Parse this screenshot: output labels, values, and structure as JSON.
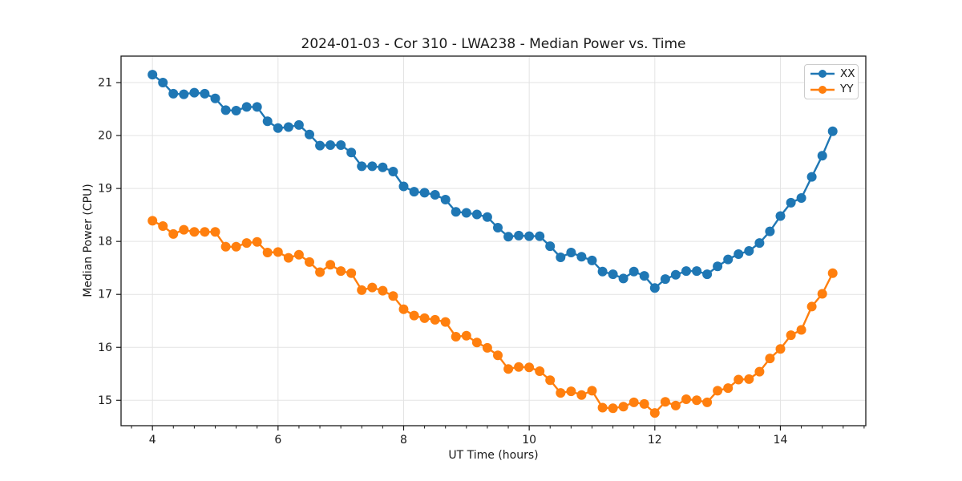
{
  "figure_title": "2024-01-03 - Cor 310 - LWA238 - Median Power vs. Time",
  "chart_data": {
    "type": "line",
    "title": "2024-01-03 - Cor 310 - LWA238 - Median Power vs. Time",
    "xlabel": "UT Time (hours)",
    "ylabel": "Median Power (CPU)",
    "xlim": [
      3.5,
      15.36
    ],
    "ylim": [
      14.52,
      21.5
    ],
    "xticks": [
      4,
      6,
      8,
      10,
      12,
      14
    ],
    "yticks": [
      15,
      16,
      17,
      18,
      19,
      20,
      21
    ],
    "xtick_minor_step": 0.33333,
    "grid": true,
    "legend_position": "upper right",
    "marker": "circle",
    "x": [
      4.0,
      4.167,
      4.333,
      4.5,
      4.667,
      4.833,
      5.0,
      5.167,
      5.333,
      5.5,
      5.667,
      5.833,
      6.0,
      6.167,
      6.333,
      6.5,
      6.667,
      6.833,
      7.0,
      7.167,
      7.333,
      7.5,
      7.667,
      7.833,
      8.0,
      8.167,
      8.333,
      8.5,
      8.667,
      8.833,
      9.0,
      9.167,
      9.333,
      9.5,
      9.667,
      9.833,
      10.0,
      10.167,
      10.333,
      10.5,
      10.667,
      10.833,
      11.0,
      11.167,
      11.333,
      11.5,
      11.667,
      11.833,
      12.0,
      12.167,
      12.333,
      12.5,
      12.667,
      12.833,
      13.0,
      13.167,
      13.333,
      13.5,
      13.667,
      13.833,
      14.0,
      14.167,
      14.333,
      14.5,
      14.667,
      14.833
    ],
    "series": [
      {
        "name": "XX",
        "color": "#1f77b4",
        "values": [
          21.15,
          21.0,
          20.79,
          20.78,
          20.81,
          20.79,
          20.7,
          20.48,
          20.47,
          20.54,
          20.54,
          20.27,
          20.14,
          20.16,
          20.2,
          20.02,
          19.81,
          19.82,
          19.82,
          19.68,
          19.42,
          19.42,
          19.4,
          19.32,
          19.04,
          18.94,
          18.92,
          18.88,
          18.79,
          18.56,
          18.54,
          18.51,
          18.46,
          18.26,
          18.09,
          18.11,
          18.1,
          18.1,
          17.91,
          17.7,
          17.79,
          17.71,
          17.64,
          17.43,
          17.38,
          17.3,
          17.43,
          17.35,
          17.12,
          17.29,
          17.37,
          17.44,
          17.44,
          17.38,
          17.53,
          17.66,
          17.76,
          17.82,
          17.97,
          18.19,
          18.48,
          18.73,
          18.82,
          19.22,
          19.62,
          20.08
        ]
      },
      {
        "name": "YY",
        "color": "#ff7f0e",
        "values": [
          18.39,
          18.29,
          18.14,
          18.22,
          18.18,
          18.18,
          18.18,
          17.9,
          17.9,
          17.97,
          17.99,
          17.79,
          17.8,
          17.69,
          17.75,
          17.61,
          17.42,
          17.56,
          17.44,
          17.4,
          17.08,
          17.13,
          17.07,
          16.97,
          16.72,
          16.6,
          16.55,
          16.52,
          16.48,
          16.2,
          16.22,
          16.09,
          15.99,
          15.85,
          15.59,
          15.63,
          15.62,
          15.55,
          15.38,
          15.14,
          15.17,
          15.1,
          15.18,
          14.86,
          14.85,
          14.88,
          14.96,
          14.93,
          14.76,
          14.97,
          14.9,
          15.02,
          15.0,
          14.96,
          15.18,
          15.23,
          15.39,
          15.4,
          15.54,
          15.79,
          15.97,
          16.23,
          16.33,
          16.77,
          17.01,
          17.4
        ]
      }
    ],
    "style": {
      "grid_color": "#e3e3e3",
      "spine_color": "#1a1a1a",
      "tick_color": "#1a1a1a",
      "background": "#ffffff"
    }
  }
}
